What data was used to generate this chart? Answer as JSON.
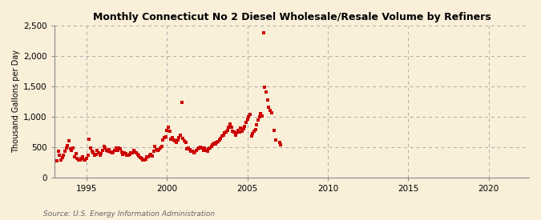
{
  "title": "Monthly Connecticut No 2 Diesel Wholesale/Resale Volume by Refiners",
  "ylabel": "Thousand Gallons per Day",
  "source": "Source: U.S. Energy Information Administration",
  "background_color": "#faefd9",
  "marker_color": "#cc0000",
  "xlim": [
    1993.0,
    2022.5
  ],
  "ylim": [
    0,
    2500
  ],
  "yticks": [
    0,
    500,
    1000,
    1500,
    2000,
    2500
  ],
  "ytick_labels": [
    "0",
    "500",
    "1,000",
    "1,500",
    "2,000",
    "2,500"
  ],
  "xticks": [
    1995,
    2000,
    2005,
    2010,
    2015,
    2020
  ],
  "data_x": [
    1993.17,
    1993.25,
    1993.33,
    1993.42,
    1993.5,
    1993.58,
    1993.67,
    1993.75,
    1993.83,
    1993.92,
    1994.0,
    1994.08,
    1994.17,
    1994.25,
    1994.33,
    1994.42,
    1994.5,
    1994.58,
    1994.67,
    1994.75,
    1994.83,
    1994.92,
    1995.0,
    1995.08,
    1995.17,
    1995.25,
    1995.33,
    1995.42,
    1995.5,
    1995.58,
    1995.67,
    1995.75,
    1995.83,
    1995.92,
    1996.0,
    1996.08,
    1996.17,
    1996.25,
    1996.33,
    1996.42,
    1996.5,
    1996.58,
    1996.67,
    1996.75,
    1996.83,
    1996.92,
    1997.0,
    1997.08,
    1997.17,
    1997.25,
    1997.33,
    1997.42,
    1997.5,
    1997.58,
    1997.67,
    1997.75,
    1997.83,
    1997.92,
    1998.0,
    1998.08,
    1998.17,
    1998.25,
    1998.33,
    1998.42,
    1998.5,
    1998.58,
    1998.67,
    1998.75,
    1998.83,
    1998.92,
    1999.0,
    1999.08,
    1999.17,
    1999.25,
    1999.33,
    1999.42,
    1999.5,
    1999.58,
    1999.67,
    1999.75,
    1999.83,
    1999.92,
    2000.0,
    2000.08,
    2000.17,
    2000.25,
    2000.33,
    2000.42,
    2000.5,
    2000.58,
    2000.67,
    2000.75,
    2000.83,
    2000.92,
    2001.0,
    2001.08,
    2001.17,
    2001.25,
    2001.33,
    2001.42,
    2001.5,
    2001.58,
    2001.67,
    2001.75,
    2001.83,
    2001.92,
    2002.0,
    2002.08,
    2002.17,
    2002.25,
    2002.33,
    2002.42,
    2002.5,
    2002.58,
    2002.67,
    2002.75,
    2002.83,
    2002.92,
    2003.0,
    2003.08,
    2003.17,
    2003.25,
    2003.33,
    2003.42,
    2003.5,
    2003.58,
    2003.67,
    2003.75,
    2003.83,
    2003.92,
    2004.0,
    2004.08,
    2004.17,
    2004.25,
    2004.33,
    2004.42,
    2004.5,
    2004.58,
    2004.67,
    2004.75,
    2004.83,
    2004.92,
    2005.0,
    2005.08,
    2005.17,
    2005.25,
    2005.33,
    2005.42,
    2005.5,
    2005.58,
    2005.67,
    2005.75,
    2005.83,
    2005.92,
    2006.0,
    2006.08,
    2006.17,
    2006.25,
    2006.33,
    2006.42,
    2006.5,
    2006.67,
    2006.75,
    2007.0,
    2007.08
  ],
  "data_y": [
    270,
    430,
    370,
    280,
    330,
    370,
    430,
    490,
    520,
    600,
    470,
    440,
    490,
    340,
    390,
    310,
    290,
    280,
    310,
    340,
    280,
    290,
    310,
    360,
    630,
    490,
    430,
    400,
    360,
    380,
    440,
    400,
    370,
    390,
    450,
    510,
    490,
    450,
    430,
    460,
    420,
    400,
    420,
    450,
    490,
    440,
    490,
    470,
    420,
    380,
    400,
    390,
    360,
    360,
    380,
    400,
    410,
    440,
    420,
    400,
    380,
    350,
    330,
    310,
    290,
    280,
    300,
    340,
    340,
    360,
    380,
    350,
    430,
    510,
    460,
    440,
    460,
    480,
    510,
    620,
    650,
    670,
    780,
    820,
    760,
    630,
    650,
    620,
    600,
    570,
    610,
    660,
    700,
    1240,
    640,
    600,
    580,
    470,
    490,
    460,
    430,
    430,
    410,
    420,
    450,
    470,
    480,
    500,
    480,
    450,
    480,
    440,
    430,
    470,
    490,
    510,
    540,
    560,
    550,
    570,
    590,
    610,
    640,
    680,
    700,
    730,
    750,
    770,
    830,
    880,
    820,
    760,
    750,
    700,
    730,
    770,
    750,
    810,
    760,
    800,
    840,
    900,
    960,
    1000,
    1040,
    680,
    720,
    760,
    790,
    870,
    940,
    1000,
    1050,
    1010,
    2380,
    1490,
    1400,
    1280,
    1150,
    1100,
    1060,
    770,
    620,
    580,
    530
  ]
}
